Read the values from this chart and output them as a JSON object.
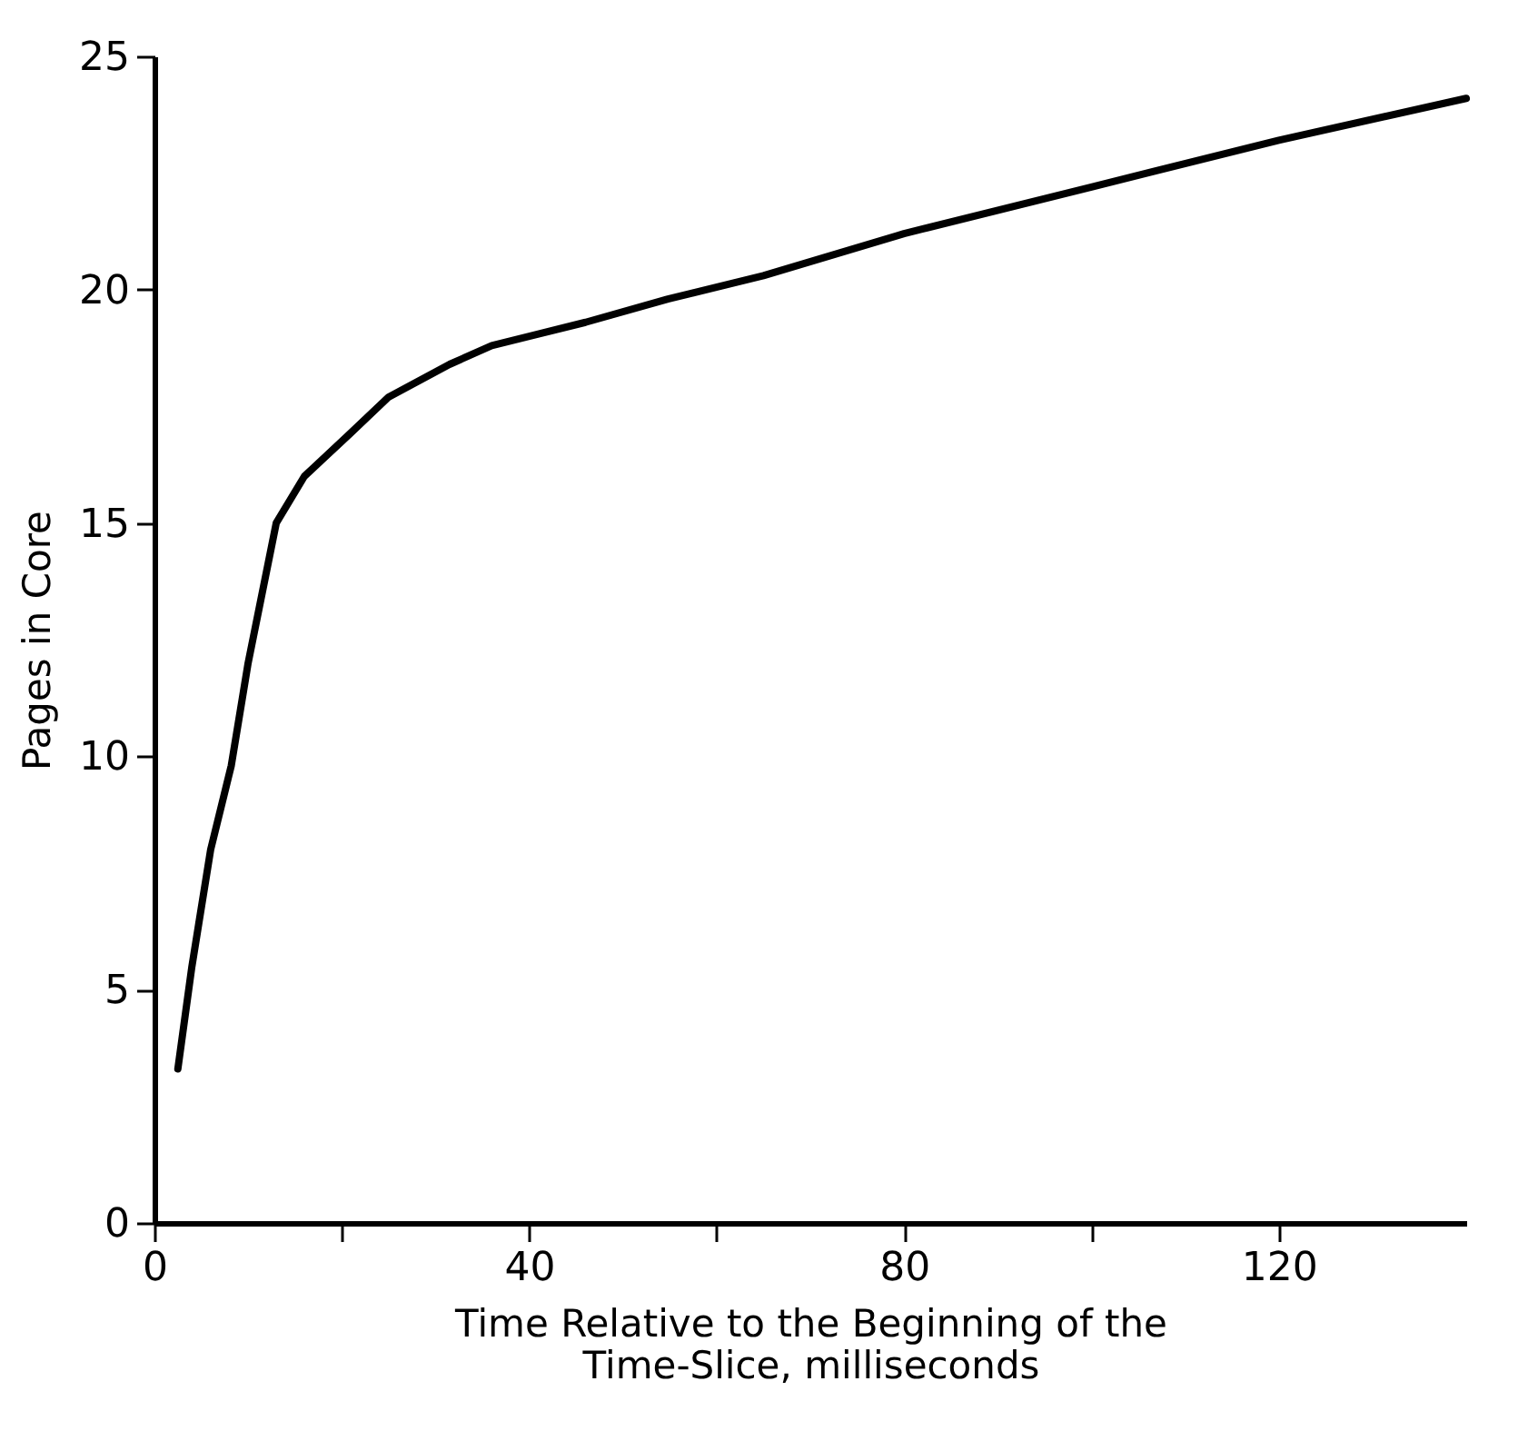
{
  "chart_data": {
    "type": "line",
    "xlabel": [
      "Time Relative to the Beginning of the",
      "Time-Slice, milliseconds"
    ],
    "ylabel": "Pages in Core",
    "x": [
      2.5,
      4,
      6,
      8.2,
      10,
      13,
      16,
      20.8,
      25,
      31.5,
      36,
      40,
      46,
      54.8,
      65,
      80,
      100,
      120,
      140
    ],
    "series": [
      {
        "color": "#000000",
        "values": [
          3.3,
          5.5,
          8,
          9.8,
          12,
          15,
          16,
          16.9,
          17.7,
          18.4,
          18.8,
          19.0,
          19.3,
          19.8,
          20.3,
          21.2,
          22.2,
          23.2,
          24.1
        ]
      }
    ],
    "xlim": [
      0,
      140
    ],
    "xticks": [
      0,
      {
        "value": 20,
        "label": null
      },
      40,
      {
        "value": 60,
        "label": null
      },
      80,
      {
        "value": 100,
        "label": null
      },
      120
    ],
    "ylim": [
      0,
      25
    ],
    "yticks": [
      0,
      5,
      10,
      15,
      20,
      25
    ],
    "grid": false,
    "marker": "none",
    "line_style": "solid"
  }
}
